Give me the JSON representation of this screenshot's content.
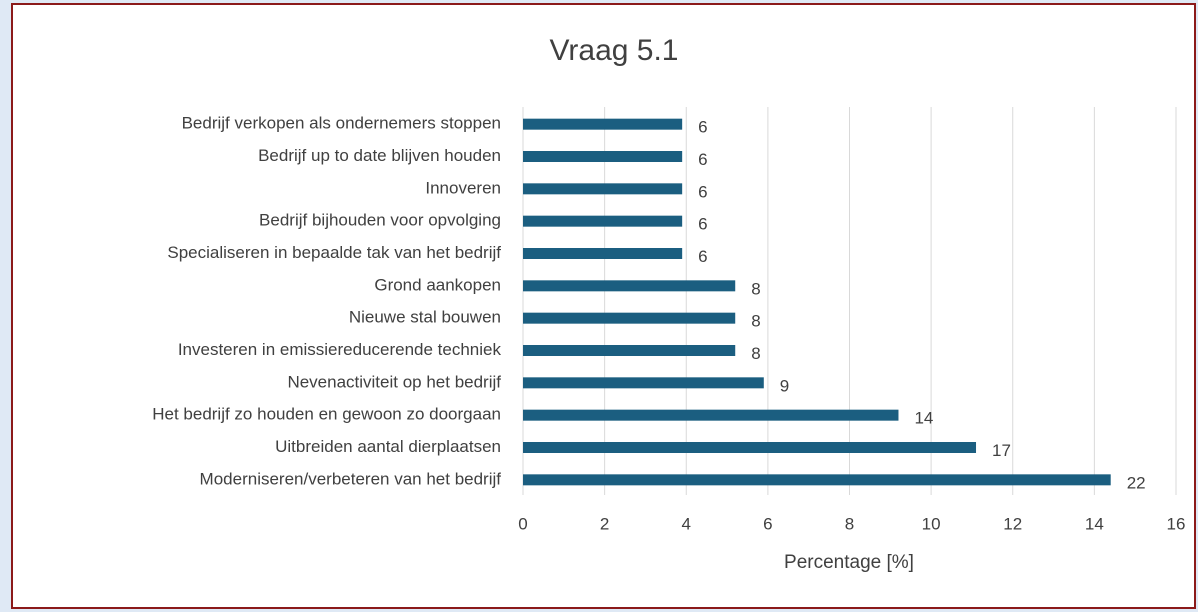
{
  "chart_data": {
    "type": "bar",
    "orientation": "horizontal",
    "title": "Vraag 5.1",
    "x_label": "Percentage [%]",
    "categories": [
      "Bedrijf verkopen als ondernemers stoppen",
      "Bedrijf up to date blijven houden",
      "Innoveren",
      "Bedrijf bijhouden voor opvolging",
      "Specialiseren in bepaalde tak van het bedrijf",
      "Grond aankopen",
      "Nieuwe stal bouwen",
      "Investeren in emissiereducerende techniek",
      "Nevenactiviteit op het bedrijf",
      "Het bedrijf zo houden en gewoon zo doorgaan",
      "Uitbreiden aantal dierplaatsen",
      "Moderniseren/verbeteren van het bedrijf"
    ],
    "values": [
      3.9,
      3.9,
      3.9,
      3.9,
      3.9,
      5.2,
      5.2,
      5.2,
      5.9,
      9.2,
      11.1,
      14.4
    ],
    "labels": [
      6,
      6,
      6,
      6,
      6,
      8,
      8,
      8,
      9,
      14,
      17,
      22
    ],
    "color": "#1b5e80",
    "xlim": [
      0,
      16
    ],
    "xticks": [
      0,
      2,
      4,
      6,
      8,
      10,
      12,
      14,
      16
    ],
    "grid": true
  }
}
